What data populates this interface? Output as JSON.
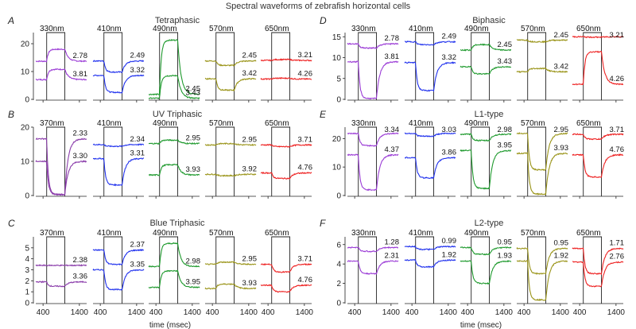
{
  "figure": {
    "title": "Spectral waveforms of zebrafish horizontal cells",
    "xlabel": "time (msec)"
  },
  "chart_data": [
    {
      "type": "line",
      "panel_letter": "A",
      "title": "Tetraphasic",
      "yticks": [
        0,
        10,
        20
      ],
      "ylim": [
        0,
        24
      ],
      "xticks": [
        400,
        1400
      ],
      "xlim": [
        200,
        1600
      ],
      "stimulus_window_ms": [
        500,
        1000
      ],
      "traces": [
        {
          "wavelength": "330nm",
          "color": "#9b3cd6",
          "series": [
            {
              "label": "2.78",
              "baseline": 13.7,
              "response": 18.0
            },
            {
              "label": "3.81",
              "baseline": 7.1,
              "response": 10.8
            }
          ]
        },
        {
          "wavelength": "410nm",
          "color": "#2233ee",
          "series": [
            {
              "label": "2.49",
              "baseline": 13.8,
              "response": 9.8
            },
            {
              "label": "3.32",
              "baseline": 8.6,
              "response": 2.5
            }
          ]
        },
        {
          "wavelength": "490nm",
          "color": "#1f9a2e",
          "series": [
            {
              "label": "2.45",
              "baseline": 1.8,
              "response": 21.3
            },
            {
              "label": "3.43",
              "baseline": 0.4,
              "response": 8.5
            }
          ]
        },
        {
          "wavelength": "570nm",
          "color": "#9a9418",
          "series": [
            {
              "label": "2.45",
              "baseline": 13.8,
              "response": 12.2
            },
            {
              "label": "3.42",
              "baseline": 7.4,
              "response": 3.3
            }
          ]
        },
        {
          "wavelength": "650nm",
          "color": "#ee2222",
          "series": [
            {
              "label": "3.21",
              "baseline": 14.0,
              "response": 14.3
            },
            {
              "label": "4.26",
              "baseline": 7.3,
              "response": 7.6
            }
          ]
        }
      ]
    },
    {
      "type": "line",
      "panel_letter": "B",
      "title": "UV Triphasic",
      "yticks": [
        0,
        10,
        20
      ],
      "ylim": [
        0,
        20
      ],
      "xticks": [
        400,
        1400
      ],
      "xlim": [
        200,
        1600
      ],
      "stimulus_window_ms": [
        500,
        1000
      ],
      "traces": [
        {
          "wavelength": "370nm",
          "color": "#8a3caa",
          "series": [
            {
              "label": "2.33",
              "baseline": 16.6,
              "response": 0.3
            },
            {
              "label": "3.30",
              "baseline": 10.0,
              "response": 0.3
            }
          ]
        },
        {
          "wavelength": "410nm",
          "color": "#2233ee",
          "series": [
            {
              "label": "2.34",
              "baseline": 14.9,
              "response": 14.4
            },
            {
              "label": "3.31",
              "baseline": 10.8,
              "response": 3.1
            }
          ]
        },
        {
          "wavelength": "490nm",
          "color": "#1f9a2e",
          "series": [
            {
              "label": "2.95",
              "baseline": 15.2,
              "response": 16.2
            },
            {
              "label": "3.93",
              "baseline": 6.0,
              "response": 9.0
            }
          ]
        },
        {
          "wavelength": "570nm",
          "color": "#9a9418",
          "series": [
            {
              "label": "2.95",
              "baseline": 14.8,
              "response": 15.2
            },
            {
              "label": "3.92",
              "baseline": 6.2,
              "response": 5.8
            }
          ]
        },
        {
          "wavelength": "650nm",
          "color": "#ee2222",
          "series": [
            {
              "label": "3.71",
              "baseline": 14.8,
              "response": 14.3
            },
            {
              "label": "4.76",
              "baseline": 6.6,
              "response": 5.0
            }
          ]
        }
      ]
    },
    {
      "type": "line",
      "panel_letter": "C",
      "title": "Blue Triphasic",
      "yticks": [
        0,
        1,
        2,
        3,
        4,
        5
      ],
      "ylim": [
        0,
        6
      ],
      "xticks": [
        400,
        1400
      ],
      "xlim": [
        200,
        1600
      ],
      "stimulus_window_ms": [
        500,
        1000
      ],
      "traces": [
        {
          "wavelength": "370nm",
          "color": "#8a3caa",
          "series": [
            {
              "label": "2.38",
              "baseline": 3.4,
              "response": 3.4
            },
            {
              "label": "3.36",
              "baseline": 1.9,
              "response": 1.5
            }
          ]
        },
        {
          "wavelength": "410nm",
          "color": "#2233ee",
          "series": [
            {
              "label": "2.37",
              "baseline": 4.8,
              "response": 3.5
            },
            {
              "label": "3.35",
              "baseline": 3.0,
              "response": 1.2
            }
          ]
        },
        {
          "wavelength": "490nm",
          "color": "#1f9a2e",
          "series": [
            {
              "label": "2.98",
              "baseline": 3.3,
              "response": 5.4
            },
            {
              "label": "3.95",
              "baseline": 1.4,
              "response": 2.9
            }
          ]
        },
        {
          "wavelength": "570nm",
          "color": "#9a9418",
          "series": [
            {
              "label": "2.95",
              "baseline": 3.5,
              "response": 3.7
            },
            {
              "label": "3.93",
              "baseline": 1.3,
              "response": 1.7
            }
          ]
        },
        {
          "wavelength": "650nm",
          "color": "#ee2222",
          "series": [
            {
              "label": "3.71",
              "baseline": 3.5,
              "response": 2.8
            },
            {
              "label": "4.76",
              "baseline": 1.6,
              "response": 1.0
            }
          ]
        }
      ]
    },
    {
      "type": "line",
      "panel_letter": "D",
      "title": "Biphasic",
      "yticks": [
        0,
        5,
        10,
        15
      ],
      "ylim": [
        0,
        16
      ],
      "xticks": [
        400,
        1400
      ],
      "xlim": [
        200,
        1600
      ],
      "stimulus_window_ms": [
        500,
        1000
      ],
      "traces": [
        {
          "wavelength": "330nm",
          "color": "#9b3cd6",
          "series": [
            {
              "label": "2.78",
              "baseline": 13.3,
              "response": 12.3
            },
            {
              "label": "3.81",
              "baseline": 9.0,
              "response": 0.2
            }
          ]
        },
        {
          "wavelength": "410nm",
          "color": "#2233ee",
          "series": [
            {
              "label": "2.49",
              "baseline": 13.8,
              "response": 13.1
            },
            {
              "label": "3.32",
              "baseline": 8.8,
              "response": 2.1
            }
          ]
        },
        {
          "wavelength": "490nm",
          "color": "#1f9a2e",
          "series": [
            {
              "label": "2.45",
              "baseline": 11.8,
              "response": 13.1
            },
            {
              "label": "3.43",
              "baseline": 7.8,
              "response": 6.1
            }
          ]
        },
        {
          "wavelength": "570nm",
          "color": "#9a9418",
          "series": [
            {
              "label": "2.45",
              "baseline": 14.2,
              "response": 13.8
            },
            {
              "label": "3.42",
              "baseline": 6.6,
              "response": 7.4
            }
          ]
        },
        {
          "wavelength": "650nm",
          "color": "#ee2222",
          "series": [
            {
              "label": "3.21",
              "baseline": 15.0,
              "response": 14.9
            },
            {
              "label": "4.26",
              "baseline": 3.6,
              "response": 11.4
            }
          ]
        }
      ]
    },
    {
      "type": "line",
      "panel_letter": "E",
      "title": "L1-type",
      "yticks": [
        0,
        10,
        20
      ],
      "ylim": [
        0,
        24
      ],
      "xticks": [
        400,
        1400
      ],
      "xlim": [
        200,
        1600
      ],
      "stimulus_window_ms": [
        500,
        1000
      ],
      "traces": [
        {
          "wavelength": "330nm",
          "color": "#9b3cd6",
          "series": [
            {
              "label": "3.34",
              "baseline": 21.8,
              "response": 17.5
            },
            {
              "label": "4.37",
              "baseline": 14.3,
              "response": 2.0
            }
          ]
        },
        {
          "wavelength": "410nm",
          "color": "#2233ee",
          "series": [
            {
              "label": "3.03",
              "baseline": 21.8,
              "response": 20.8
            },
            {
              "label": "3.86",
              "baseline": 13.3,
              "response": 6.2
            }
          ]
        },
        {
          "wavelength": "490nm",
          "color": "#1f9a2e",
          "series": [
            {
              "label": "2.98",
              "baseline": 21.5,
              "response": 19.3
            },
            {
              "label": "3.95",
              "baseline": 15.8,
              "response": 2.5
            }
          ]
        },
        {
          "wavelength": "570nm",
          "color": "#9a9418",
          "series": [
            {
              "label": "2.95",
              "baseline": 21.8,
              "response": 9.0
            },
            {
              "label": "3.93",
              "baseline": 14.8,
              "response": 0.5
            }
          ]
        },
        {
          "wavelength": "650nm",
          "color": "#ee2222",
          "series": [
            {
              "label": "3.71",
              "baseline": 21.5,
              "response": 19.8
            },
            {
              "label": "4.76",
              "baseline": 14.3,
              "response": 6.5
            }
          ]
        }
      ]
    },
    {
      "type": "line",
      "panel_letter": "F",
      "title": "L2-type",
      "yticks": [
        0,
        2,
        4,
        6
      ],
      "ylim": [
        0,
        6.8
      ],
      "xticks": [
        400,
        1400
      ],
      "xlim": [
        200,
        1600
      ],
      "stimulus_window_ms": [
        500,
        1000
      ],
      "traces": [
        {
          "wavelength": "330nm",
          "color": "#9b3cd6",
          "series": [
            {
              "label": "1.28",
              "baseline": 5.7,
              "response": 5.3
            },
            {
              "label": "2.31",
              "baseline": 4.3,
              "response": 3.0
            }
          ]
        },
        {
          "wavelength": "410nm",
          "color": "#2233ee",
          "series": [
            {
              "label": "0.99",
              "baseline": 5.8,
              "response": 5.5
            },
            {
              "label": "1.92",
              "baseline": 4.4,
              "response": 3.7
            }
          ]
        },
        {
          "wavelength": "490nm",
          "color": "#1f9a2e",
          "series": [
            {
              "label": "0.95",
              "baseline": 5.7,
              "response": 5.0
            },
            {
              "label": "1.93",
              "baseline": 4.3,
              "response": 2.0
            }
          ]
        },
        {
          "wavelength": "570nm",
          "color": "#9a9418",
          "series": [
            {
              "label": "0.95",
              "baseline": 5.6,
              "response": 3.0
            },
            {
              "label": "1.92",
              "baseline": 4.3,
              "response": 0.3
            }
          ]
        },
        {
          "wavelength": "650nm",
          "color": "#ee2222",
          "series": [
            {
              "label": "1.71",
              "baseline": 5.6,
              "response": 3.0
            },
            {
              "label": "2.76",
              "baseline": 4.2,
              "response": 1.7
            }
          ]
        }
      ]
    }
  ]
}
